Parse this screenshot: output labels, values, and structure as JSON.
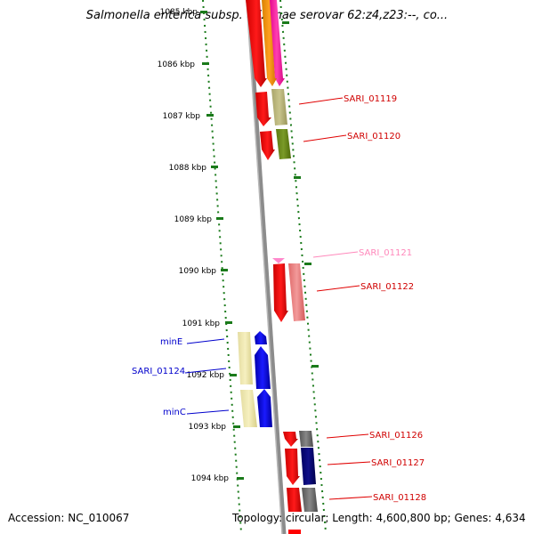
{
  "title": "Salmonella enterica subsp. arizonae serovar 62:z4,z23:--, co...",
  "footer": {
    "accession": "Accession: NC_010067",
    "summary": "Topology: circular; Length: 4,600,800 bp; Genes: 4,634"
  },
  "ticks": [
    "1085 kbp",
    "1086 kbp",
    "1087 kbp",
    "1088 kbp",
    "1089 kbp",
    "1090 kbp",
    "1091 kbp",
    "1092 kbp",
    "1093 kbp",
    "1094 kbp"
  ],
  "gene_labels": [
    "SARI_01119",
    "SARI_01120",
    "SARI_01121",
    "SARI_01122",
    "minE",
    "SARI_01124",
    "minC",
    "SARI_01126",
    "SARI_01127",
    "SARI_01128"
  ],
  "colors": {
    "backbone": "#8c8c8c",
    "tick_dots": "#1a7a1a",
    "red": "#ff0000",
    "blue": "#0000ff",
    "pink_label": "#ff88bb",
    "label_red": "#d00000",
    "label_blue": "#0000cc"
  }
}
